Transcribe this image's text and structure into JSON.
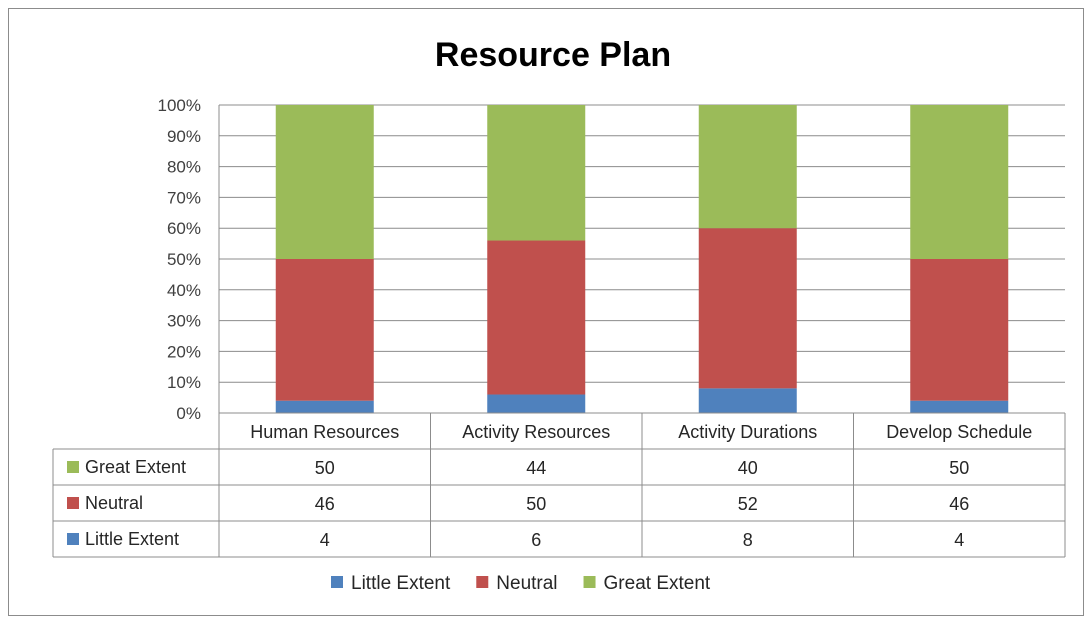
{
  "chart_data": {
    "type": "bar",
    "stacked": true,
    "percent_stacked": true,
    "title": "Resource Plan",
    "categories": [
      "Human Resources",
      "Activity Resources",
      "Activity Durations",
      "Develop Schedule"
    ],
    "series": [
      {
        "name": "Little Extent",
        "values": [
          4,
          6,
          8,
          4
        ],
        "color": "#4f81bd"
      },
      {
        "name": "Neutral",
        "values": [
          46,
          50,
          52,
          46
        ],
        "color": "#c0504d"
      },
      {
        "name": "Great Extent",
        "values": [
          50,
          44,
          40,
          50
        ],
        "color": "#9bbb59"
      }
    ],
    "y_ticks": [
      "0%",
      "10%",
      "20%",
      "30%",
      "40%",
      "50%",
      "60%",
      "70%",
      "80%",
      "90%",
      "100%"
    ],
    "ylim": [
      0,
      100
    ],
    "grid": true,
    "legend": "bottom",
    "data_table": true,
    "data_table_row_order": [
      "Great Extent",
      "Neutral",
      "Little Extent"
    ]
  }
}
